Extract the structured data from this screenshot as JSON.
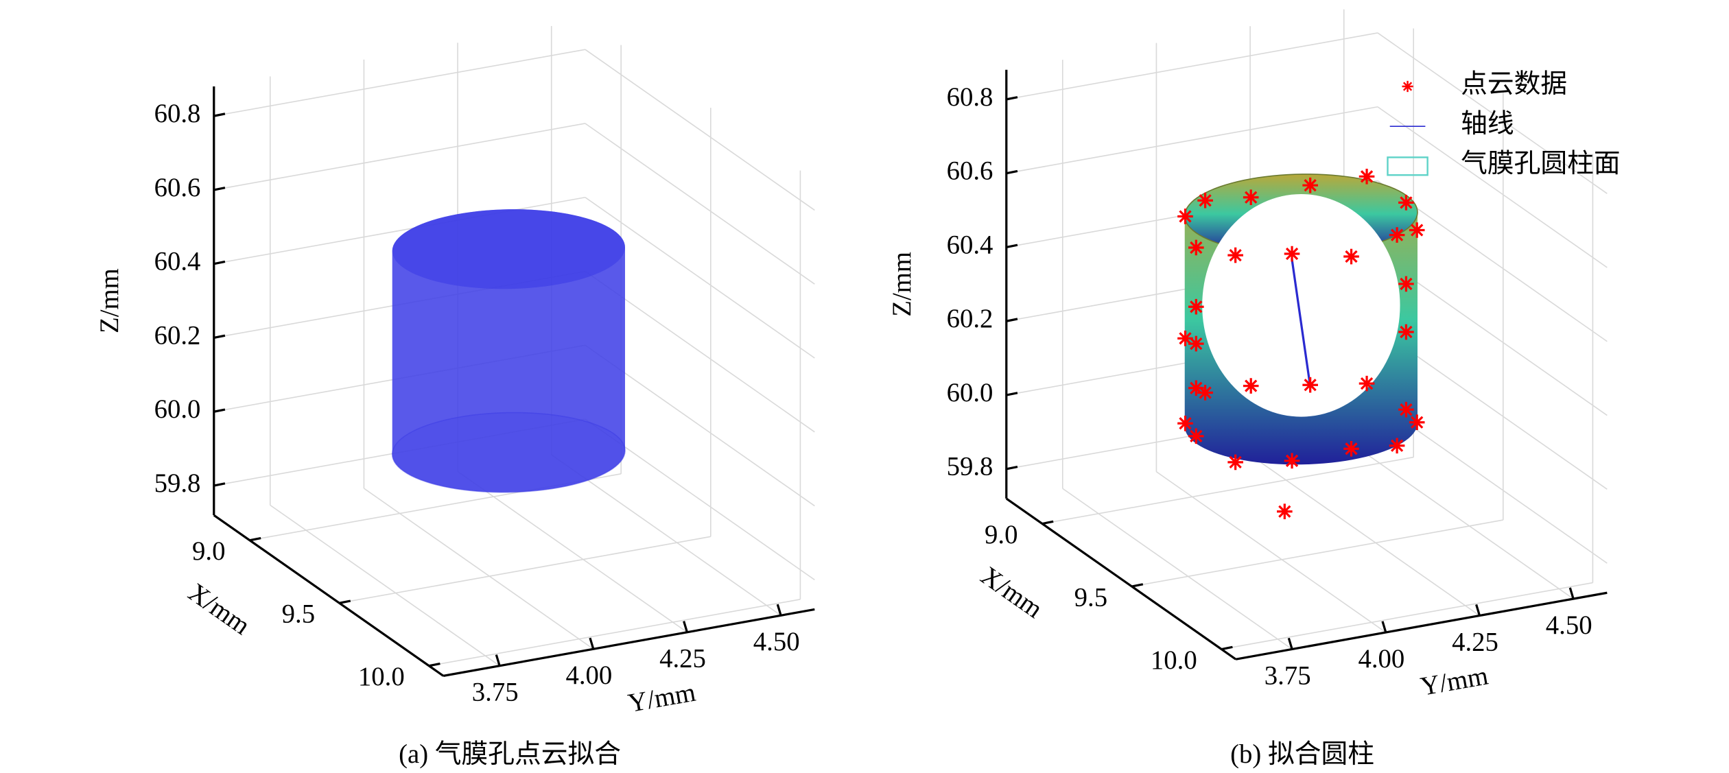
{
  "chart_data": [
    {
      "type": "cylinder3d",
      "title": "(a) 气膜孔点云拟合",
      "xlabel": "X/mm",
      "ylabel": "Y/mm",
      "zlabel": "Z/mm",
      "xlim": [
        8.8,
        10.08
      ],
      "ylim": [
        3.6,
        4.59
      ],
      "zlim": [
        59.72,
        60.88
      ],
      "xticks": [
        {
          "value": 9,
          "label": "9.0"
        },
        9.5,
        {
          "value": 10,
          "label": "10.0"
        }
      ],
      "yticks": [
        3.75,
        {
          "value": 4,
          "label": "4.00"
        },
        4.25,
        {
          "value": 4.5,
          "label": "4.50"
        }
      ],
      "zticks": [
        59.8,
        {
          "value": 60,
          "label": "60.0"
        },
        60.2,
        60.4,
        60.6,
        60.8
      ],
      "grid": true,
      "surface": {
        "center_x": 9.44,
        "center_y": 4.08,
        "radius": 0.28,
        "z_bottom": 60.02,
        "z_top": 60.57,
        "color": "#3c3ce6"
      }
    },
    {
      "type": "fit3d",
      "title": "(b) 拟合圆柱",
      "xlabel": "X/mm",
      "ylabel": "Y/mm",
      "zlabel": "Z/mm",
      "xlim": [
        8.8,
        10.08
      ],
      "ylim": [
        3.6,
        4.59
      ],
      "zlim": [
        59.72,
        60.88
      ],
      "xticks": [
        {
          "value": 9,
          "label": "9.0"
        },
        9.5,
        {
          "value": 10,
          "label": "10.0"
        }
      ],
      "yticks": [
        3.75,
        {
          "value": 4,
          "label": "4.00"
        },
        4.25,
        {
          "value": 4.5,
          "label": "4.50"
        }
      ],
      "zticks": [
        59.8,
        {
          "value": 60,
          "label": "60.0"
        },
        60.2,
        60.4,
        60.6,
        60.8
      ],
      "grid": true,
      "legend": "upper right",
      "series": [
        {
          "name": "点云数据",
          "color": "#ff0000",
          "x": [
            9.72,
            9.682,
            9.58,
            9.44,
            9.3,
            9.198,
            9.16,
            9.198,
            9.3,
            9.44,
            9.58,
            9.682,
            9.72,
            9.682,
            9.58,
            9.44,
            9.3,
            9.198,
            9.16,
            9.198,
            9.3,
            9.44,
            9.58,
            9.682,
            9.44,
            9.44,
            9.44,
            9.3,
            9.44,
            9.44,
            9.62
          ],
          "y": [
            4.08,
            4.22,
            4.322,
            4.36,
            4.322,
            4.22,
            4.08,
            3.94,
            3.838,
            3.8,
            3.838,
            3.94,
            4.08,
            4.22,
            4.322,
            4.36,
            4.322,
            4.22,
            4.08,
            3.94,
            3.838,
            3.8,
            3.838,
            3.94,
            3.8,
            3.8,
            3.8,
            3.838,
            4.36,
            4.36,
            3.95
          ],
          "z": [
            60.6,
            60.62,
            60.58,
            60.6,
            60.63,
            60.59,
            60.57,
            60.6,
            60.61,
            60.58,
            60.6,
            60.62,
            60.08,
            60.05,
            60.06,
            60.04,
            60.07,
            60.05,
            60.06,
            60.08,
            60.05,
            60.07,
            60.04,
            60.06,
            60.2,
            60.32,
            60.42,
            60.28,
            60.25,
            60.38,
            59.9
          ]
        },
        {
          "name": "轴线",
          "color": "#2a2ad0",
          "x": [
            9.43,
            9.45
          ],
          "y": [
            4.06,
            4.1
          ],
          "z": [
            60.5,
            60.15
          ]
        }
      ],
      "surface": {
        "name": "气膜孔圆柱面",
        "edge_color": "#5fd3c8",
        "colors": [
          "#b8a83a",
          "#3cc8a0",
          "#20209a"
        ],
        "center_x": 9.44,
        "center_y": 4.08,
        "radius": 0.28,
        "z_bottom": 60.05,
        "z_top": 60.62
      }
    }
  ]
}
